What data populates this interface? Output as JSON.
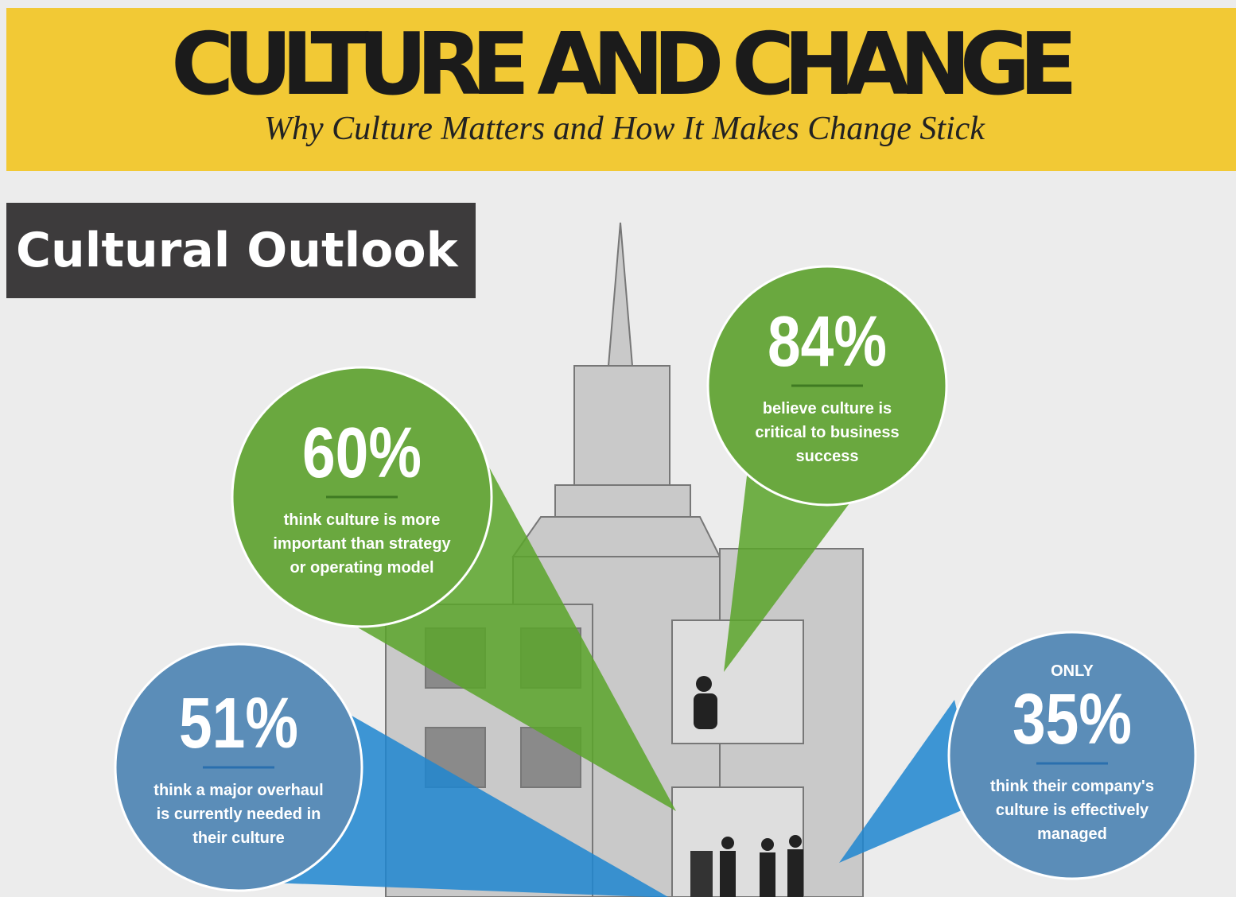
{
  "header": {
    "title": "CULTURE AND CHANGE",
    "subtitle": "Why Culture Matters and How It Makes Change Stick"
  },
  "section": {
    "title": "Cultural Outlook"
  },
  "stats": [
    {
      "value": "60%",
      "lines": [
        "think culture is more",
        "important than strategy",
        "or operating model"
      ]
    },
    {
      "value": "84%",
      "lines": [
        "believe culture is",
        "critical to business",
        "success"
      ]
    },
    {
      "value": "51%",
      "lines": [
        "think a major overhaul",
        "is currently needed in",
        "their culture"
      ]
    },
    {
      "prefix": "ONLY",
      "value": "35%",
      "lines": [
        "think their company's",
        "culture is effectively",
        "managed"
      ]
    }
  ]
}
